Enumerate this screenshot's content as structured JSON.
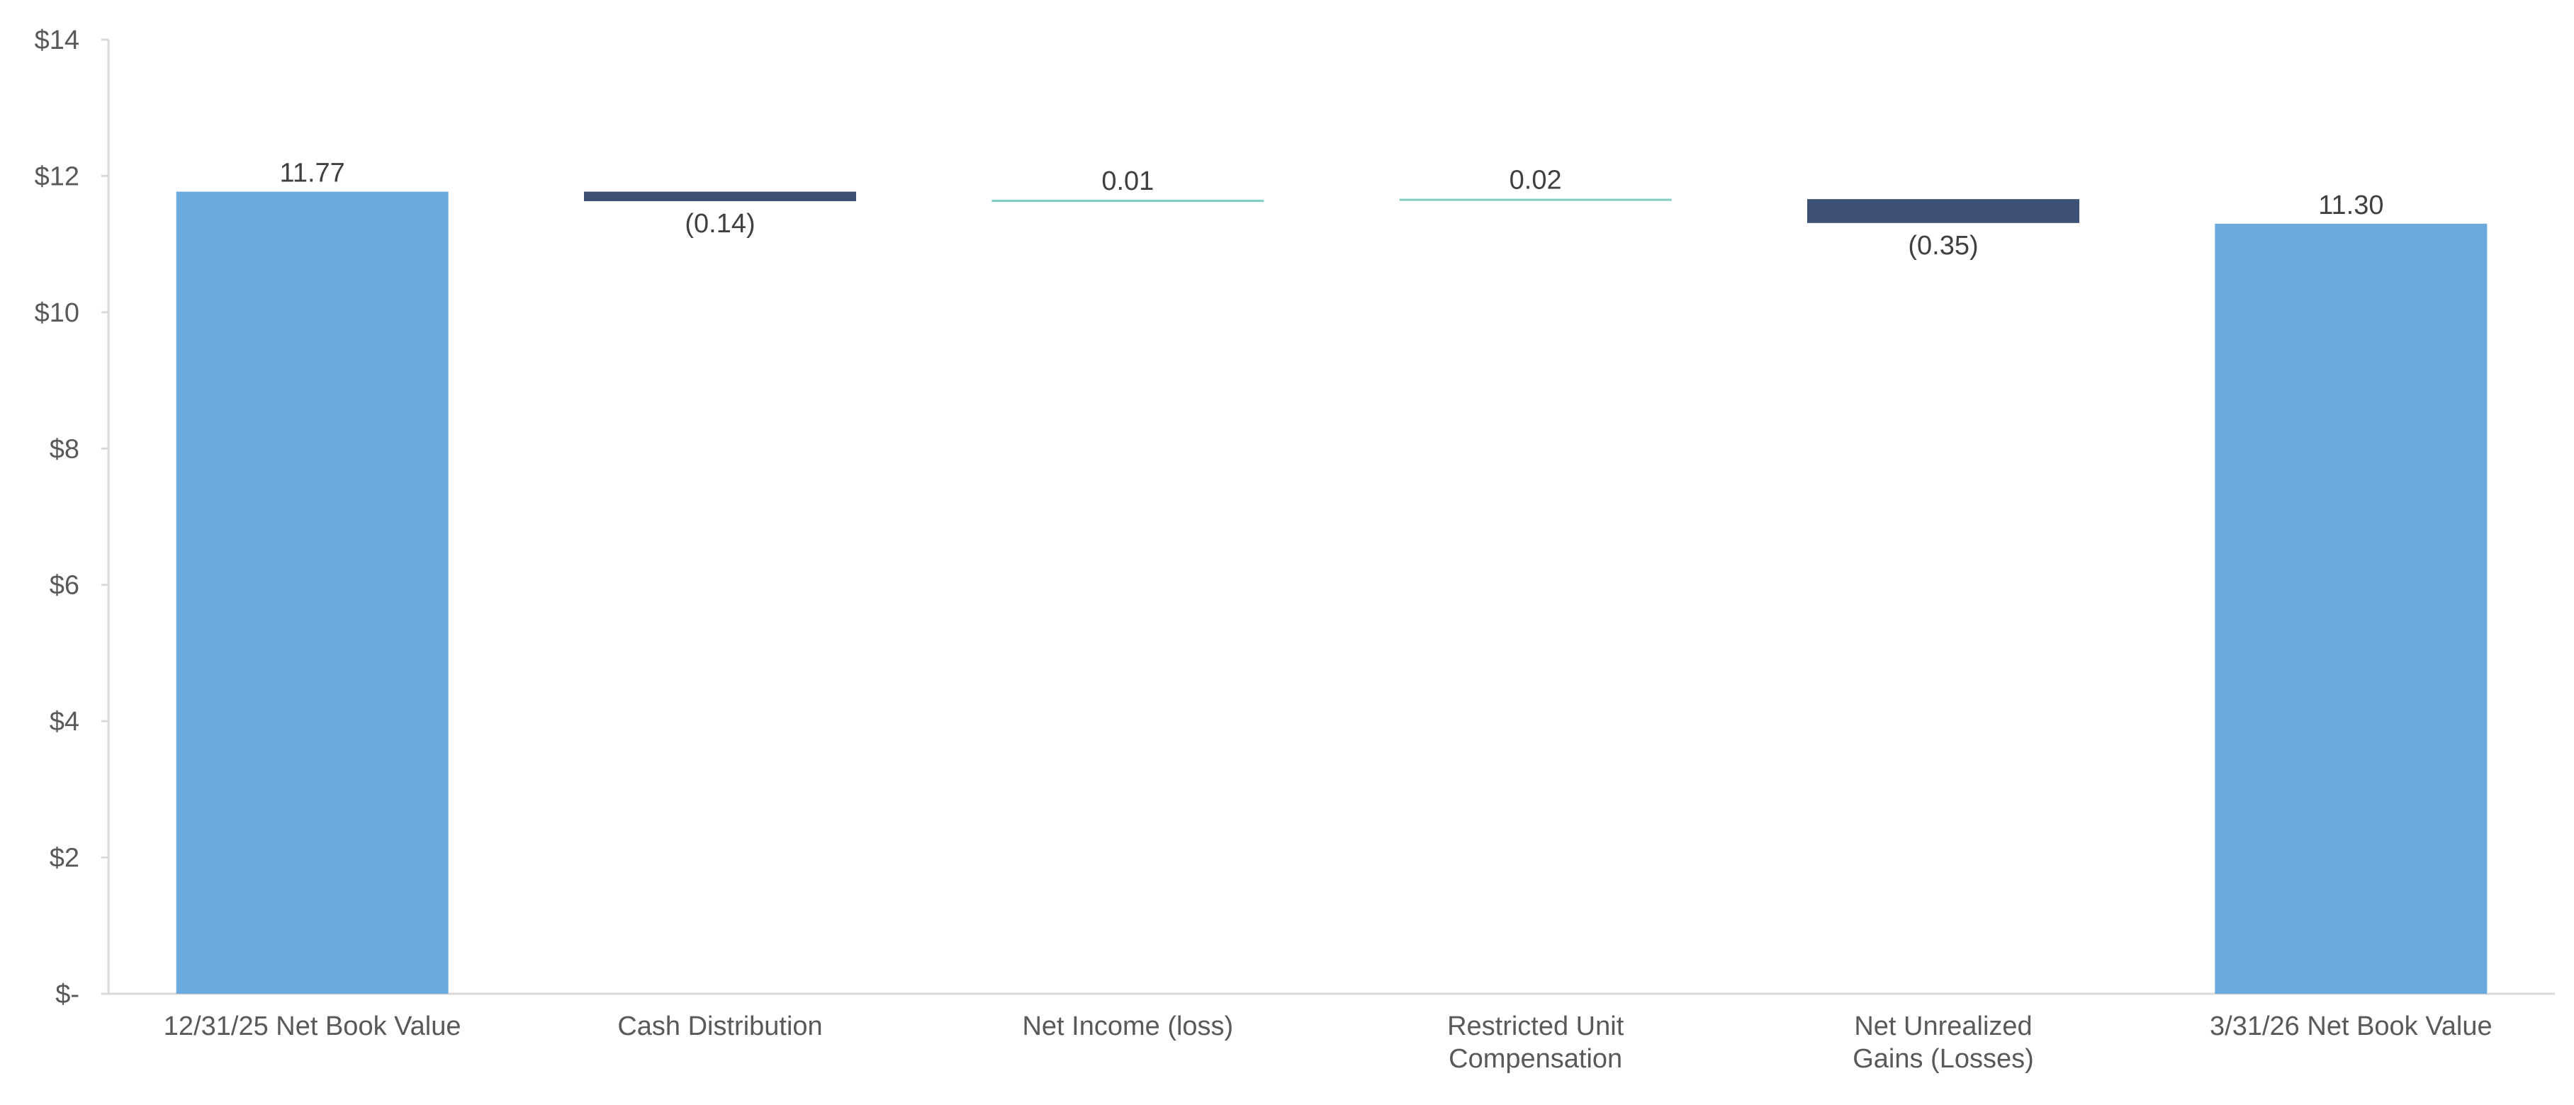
{
  "chart_data": {
    "type": "bar",
    "subtype": "waterfall",
    "title": "",
    "xlabel": "",
    "ylabel": "",
    "ylim": [
      0,
      14
    ],
    "ytick_values": [
      0,
      2,
      4,
      6,
      8,
      10,
      12,
      14
    ],
    "ytick_labels": [
      "$-",
      "$2",
      "$4",
      "$6",
      "$8",
      "$10",
      "$12",
      "$14"
    ],
    "grid": false,
    "legend": "none",
    "categories": [
      [
        "12/31/25 Net Book Value"
      ],
      [
        "Cash Distribution"
      ],
      [
        "Net Income (loss)"
      ],
      [
        "Restricted Unit",
        "Compensation"
      ],
      [
        "Net Unrealized",
        "Gains (Losses)"
      ],
      [
        "3/31/26 Net Book Value"
      ]
    ],
    "bars": [
      {
        "kind": "total",
        "start": 0,
        "end": 11.77,
        "value": 11.77,
        "label": "11.77"
      },
      {
        "kind": "decrease",
        "start": 11.77,
        "end": 11.63,
        "value": -0.14,
        "label": "(0.14)"
      },
      {
        "kind": "increase",
        "start": 11.63,
        "end": 11.64,
        "value": 0.01,
        "label": "0.01"
      },
      {
        "kind": "increase",
        "start": 11.64,
        "end": 11.66,
        "value": 0.02,
        "label": "0.02"
      },
      {
        "kind": "decrease",
        "start": 11.66,
        "end": 11.31,
        "value": -0.35,
        "label": "(0.35)"
      },
      {
        "kind": "total",
        "start": 0,
        "end": 11.3,
        "value": 11.3,
        "label": "11.30"
      }
    ],
    "colors": {
      "total": "#6CA9DD",
      "decrease": "#3D5174",
      "increase": "#7FCFC0",
      "axis": "#D9D9D9"
    }
  }
}
